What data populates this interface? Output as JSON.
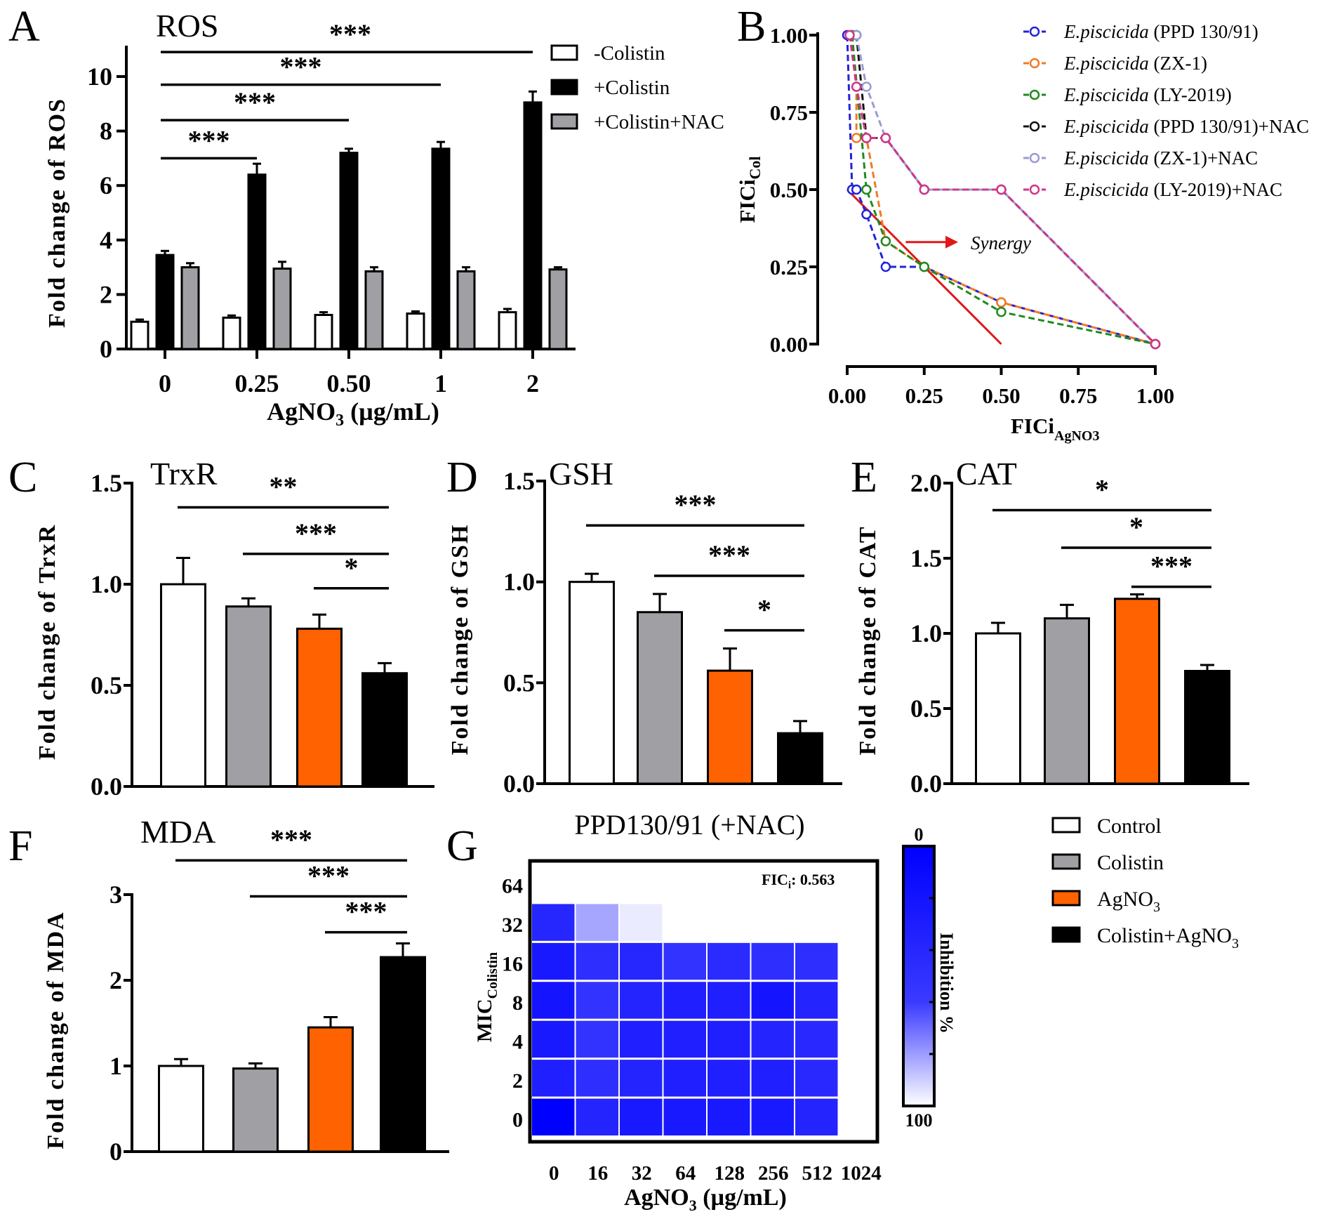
{
  "panel_letters": [
    "A",
    "B",
    "C",
    "D",
    "E",
    "F",
    "G"
  ],
  "chart_data": [
    {
      "id": "A",
      "type": "bar",
      "title": "ROS",
      "ylabel": "Fold change of ROS",
      "xlabel": "AgNO",
      "xlabel_sub": "3",
      "xlabel_tail": " (µg/mL)",
      "ylim": [
        0,
        11
      ],
      "yticks": [
        "0",
        "2",
        "4",
        "6",
        "8",
        "10"
      ],
      "ytick_values": [
        0,
        2,
        4,
        6,
        8,
        10
      ],
      "categories": [
        "0",
        "0.25",
        "0.50",
        "1",
        "2"
      ],
      "series": [
        {
          "name": "-Colistin",
          "color": "#ffffff",
          "values": [
            1.0,
            1.15,
            1.25,
            1.3,
            1.35
          ],
          "errors": [
            0.08,
            0.08,
            0.1,
            0.08,
            0.12
          ]
        },
        {
          "name": "+Colistin",
          "color": "#000000",
          "values": [
            3.45,
            6.4,
            7.2,
            7.35,
            9.05
          ],
          "errors": [
            0.15,
            0.4,
            0.15,
            0.25,
            0.4
          ]
        },
        {
          "name": "+Colistin+NAC",
          "color": "#a0a0a4",
          "values": [
            3.0,
            2.95,
            2.85,
            2.85,
            2.92
          ],
          "errors": [
            0.15,
            0.25,
            0.15,
            0.15,
            0.08
          ]
        }
      ],
      "significance": [
        {
          "from": 0,
          "to": 1,
          "y": 7.0,
          "label": "***"
        },
        {
          "from": 0,
          "to": 2,
          "y": 8.4,
          "label": "***"
        },
        {
          "from": 0,
          "to": 3,
          "y": 9.7,
          "label": "***"
        },
        {
          "from": 0,
          "to": 4,
          "y": 10.9,
          "label": "***"
        }
      ],
      "legend": "top-right"
    },
    {
      "id": "B",
      "type": "line",
      "ylabel": "FICi",
      "ylabel_sub": "Col",
      "xlabel": "FICi",
      "xlabel_sub": "AgNO3",
      "xlim": [
        0,
        1
      ],
      "ylim": [
        0,
        1
      ],
      "xticks": [
        "0.00",
        "0.25",
        "0.50",
        "0.75",
        "1.00"
      ],
      "yticks": [
        "0.00",
        "0.25",
        "0.50",
        "0.75",
        "1.00"
      ],
      "tick_values": [
        0,
        0.25,
        0.5,
        0.75,
        1
      ],
      "series": [
        {
          "name_italic": "E.piscicida",
          "name": " (PPD 130/91)",
          "color": "#2323d8",
          "x": [
            0,
            0.016,
            0.03,
            0.0625,
            0.125,
            0.25,
            0.5,
            1
          ],
          "y": [
            1,
            0.5,
            0.5,
            0.42,
            0.25,
            0.25,
            0.135,
            0
          ]
        },
        {
          "name_italic": "E.piscicida",
          "name": " (ZX-1)",
          "color": "#f07a26",
          "x": [
            0.016,
            0.03,
            0.03,
            0.0625,
            0.125,
            0.25,
            0.5,
            1
          ],
          "y": [
            1,
            0.833,
            0.667,
            0.667,
            0.333,
            0.25,
            0.135,
            0
          ]
        },
        {
          "name_italic": "E.piscicida",
          "name": " (LY-2019)",
          "color": "#1f8a1f",
          "x": [
            0.016,
            0.0625,
            0.125,
            0.25,
            0.5,
            1
          ],
          "y": [
            1,
            0.5,
            0.333,
            0.25,
            0.104,
            0
          ]
        },
        {
          "name_italic": "E.piscicida",
          "name": " (PPD 130/91)+NAC",
          "color": "#111111",
          "x": [
            0.03,
            0.0625,
            0.125,
            0.25,
            0.5,
            1
          ],
          "y": [
            1,
            0.667,
            0.667,
            0.5,
            0.5,
            0
          ]
        },
        {
          "name_italic": "E.piscicida",
          "name": " (ZX-1)+NAC",
          "color": "#9a9ad6",
          "x": [
            0.03,
            0.0625,
            0.125,
            0.25,
            0.5,
            1
          ],
          "y": [
            1,
            0.833,
            0.667,
            0.5,
            0.5,
            0
          ]
        },
        {
          "name_italic": "E.piscicida",
          "name": " (LY-2019)+NAC",
          "color": "#d0368a",
          "x": [
            0.008,
            0.03,
            0.0625,
            0.125,
            0.25,
            0.5,
            1
          ],
          "y": [
            1,
            0.833,
            0.667,
            0.667,
            0.5,
            0.5,
            0
          ]
        }
      ],
      "synergy_line": {
        "x": [
          0,
          0.5
        ],
        "y": [
          0.5,
          0
        ],
        "color": "#e01818"
      },
      "annotation": {
        "text": "Synergy",
        "arrow_x": [
          0.19,
          0.36
        ],
        "y": 0.33,
        "color": "#e01818"
      },
      "legend": "top-right"
    },
    {
      "id": "C",
      "type": "bar",
      "title": "TrxR",
      "ylabel": "Fold change of TrxR",
      "ylim": [
        0,
        1.5
      ],
      "yticks": [
        "0.0",
        "0.5",
        "1.0",
        "1.5"
      ],
      "ytick_values": [
        0,
        0.5,
        1,
        1.5
      ],
      "values": [
        1.0,
        0.89,
        0.78,
        0.56
      ],
      "errors": [
        0.13,
        0.04,
        0.07,
        0.05
      ],
      "significance": [
        {
          "from": 0,
          "to": 3,
          "y": 1.38,
          "label": "**"
        },
        {
          "from": 1,
          "to": 3,
          "y": 1.15,
          "label": "***"
        },
        {
          "from": 2,
          "to": 3,
          "y": 0.98,
          "label": "*"
        }
      ]
    },
    {
      "id": "D",
      "type": "bar",
      "title": "GSH",
      "ylabel": "Fold change of GSH",
      "ylim": [
        0,
        1.5
      ],
      "yticks": [
        "0.0",
        "0.5",
        "1.0",
        "1.5"
      ],
      "ytick_values": [
        0,
        0.5,
        1,
        1.5
      ],
      "values": [
        1.0,
        0.85,
        0.56,
        0.25
      ],
      "errors": [
        0.04,
        0.09,
        0.11,
        0.06
      ],
      "significance": [
        {
          "from": 0,
          "to": 3,
          "y": 1.28,
          "label": "***"
        },
        {
          "from": 1,
          "to": 3,
          "y": 1.03,
          "label": "***"
        },
        {
          "from": 2,
          "to": 3,
          "y": 0.76,
          "label": "*"
        }
      ]
    },
    {
      "id": "E",
      "type": "bar",
      "title": "CAT",
      "ylabel": "Fold change of CAT",
      "ylim": [
        0,
        2.0
      ],
      "yticks": [
        "0.0",
        "0.5",
        "1.0",
        "1.5",
        "2.0"
      ],
      "ytick_values": [
        0,
        0.5,
        1,
        1.5,
        2
      ],
      "values": [
        1.0,
        1.1,
        1.23,
        0.75
      ],
      "errors": [
        0.07,
        0.09,
        0.03,
        0.04
      ],
      "significance": [
        {
          "from": 0,
          "to": 3,
          "y": 1.82,
          "label": "*"
        },
        {
          "from": 1,
          "to": 3,
          "y": 1.57,
          "label": "*"
        },
        {
          "from": 2,
          "to": 3,
          "y": 1.31,
          "label": "***"
        }
      ]
    },
    {
      "id": "F",
      "type": "bar",
      "title": "MDA",
      "ylabel": "Fold change of MDA",
      "ylim": [
        0,
        3.5
      ],
      "yticks": [
        "0",
        "1",
        "2",
        "3"
      ],
      "ytick_values": [
        0,
        1,
        2,
        3
      ],
      "values": [
        1.0,
        0.97,
        1.45,
        2.27
      ],
      "errors": [
        0.08,
        0.06,
        0.12,
        0.16
      ],
      "significance": [
        {
          "from": 0,
          "to": 3,
          "y": 3.4,
          "label": "***"
        },
        {
          "from": 1,
          "to": 3,
          "y": 2.98,
          "label": "***"
        },
        {
          "from": 2,
          "to": 3,
          "y": 2.56,
          "label": "***"
        }
      ]
    },
    {
      "id": "G",
      "type": "heatmap",
      "title": "PPD130/91 (+NAC)",
      "annotation": "FIC",
      "annotation_sub": "i",
      "annotation_value": ":  0.563",
      "xlabel": "AgNO",
      "xlabel_sub": "3",
      "xlabel_tail": " (µg/mL)",
      "ylabel": "MIC",
      "ylabel_sub": "Colistin",
      "x_categories": [
        "0",
        "16",
        "32",
        "64",
        "128",
        "256",
        "512",
        "1024"
      ],
      "y_categories": [
        "64",
        "32",
        "16",
        "8",
        "4",
        "2",
        "0"
      ],
      "values": [
        [
          0,
          0,
          0,
          0,
          0,
          0,
          0,
          0
        ],
        [
          85,
          35,
          8,
          0,
          0,
          0,
          0,
          0
        ],
        [
          90,
          82,
          85,
          80,
          83,
          82,
          82,
          0
        ],
        [
          92,
          80,
          86,
          88,
          88,
          92,
          86,
          0
        ],
        [
          90,
          80,
          88,
          88,
          88,
          86,
          84,
          0
        ],
        [
          88,
          82,
          86,
          88,
          88,
          88,
          84,
          0
        ],
        [
          100,
          86,
          90,
          90,
          90,
          90,
          86,
          0
        ]
      ],
      "colorbar": {
        "label": "Inhibition %",
        "top_label": "0",
        "bottom_label": "100",
        "color_high": "#0000ff",
        "color_low": "#ffffff"
      }
    }
  ],
  "group_legend": [
    {
      "label": "Control",
      "sub": "",
      "color": "#ffffff"
    },
    {
      "label": "Colistin",
      "sub": "",
      "color": "#a0a0a4"
    },
    {
      "label": "AgNO",
      "sub": "3",
      "color": "#ff6200"
    },
    {
      "label": "Colistin+AgNO",
      "sub": "3",
      "color": "#000000"
    }
  ]
}
